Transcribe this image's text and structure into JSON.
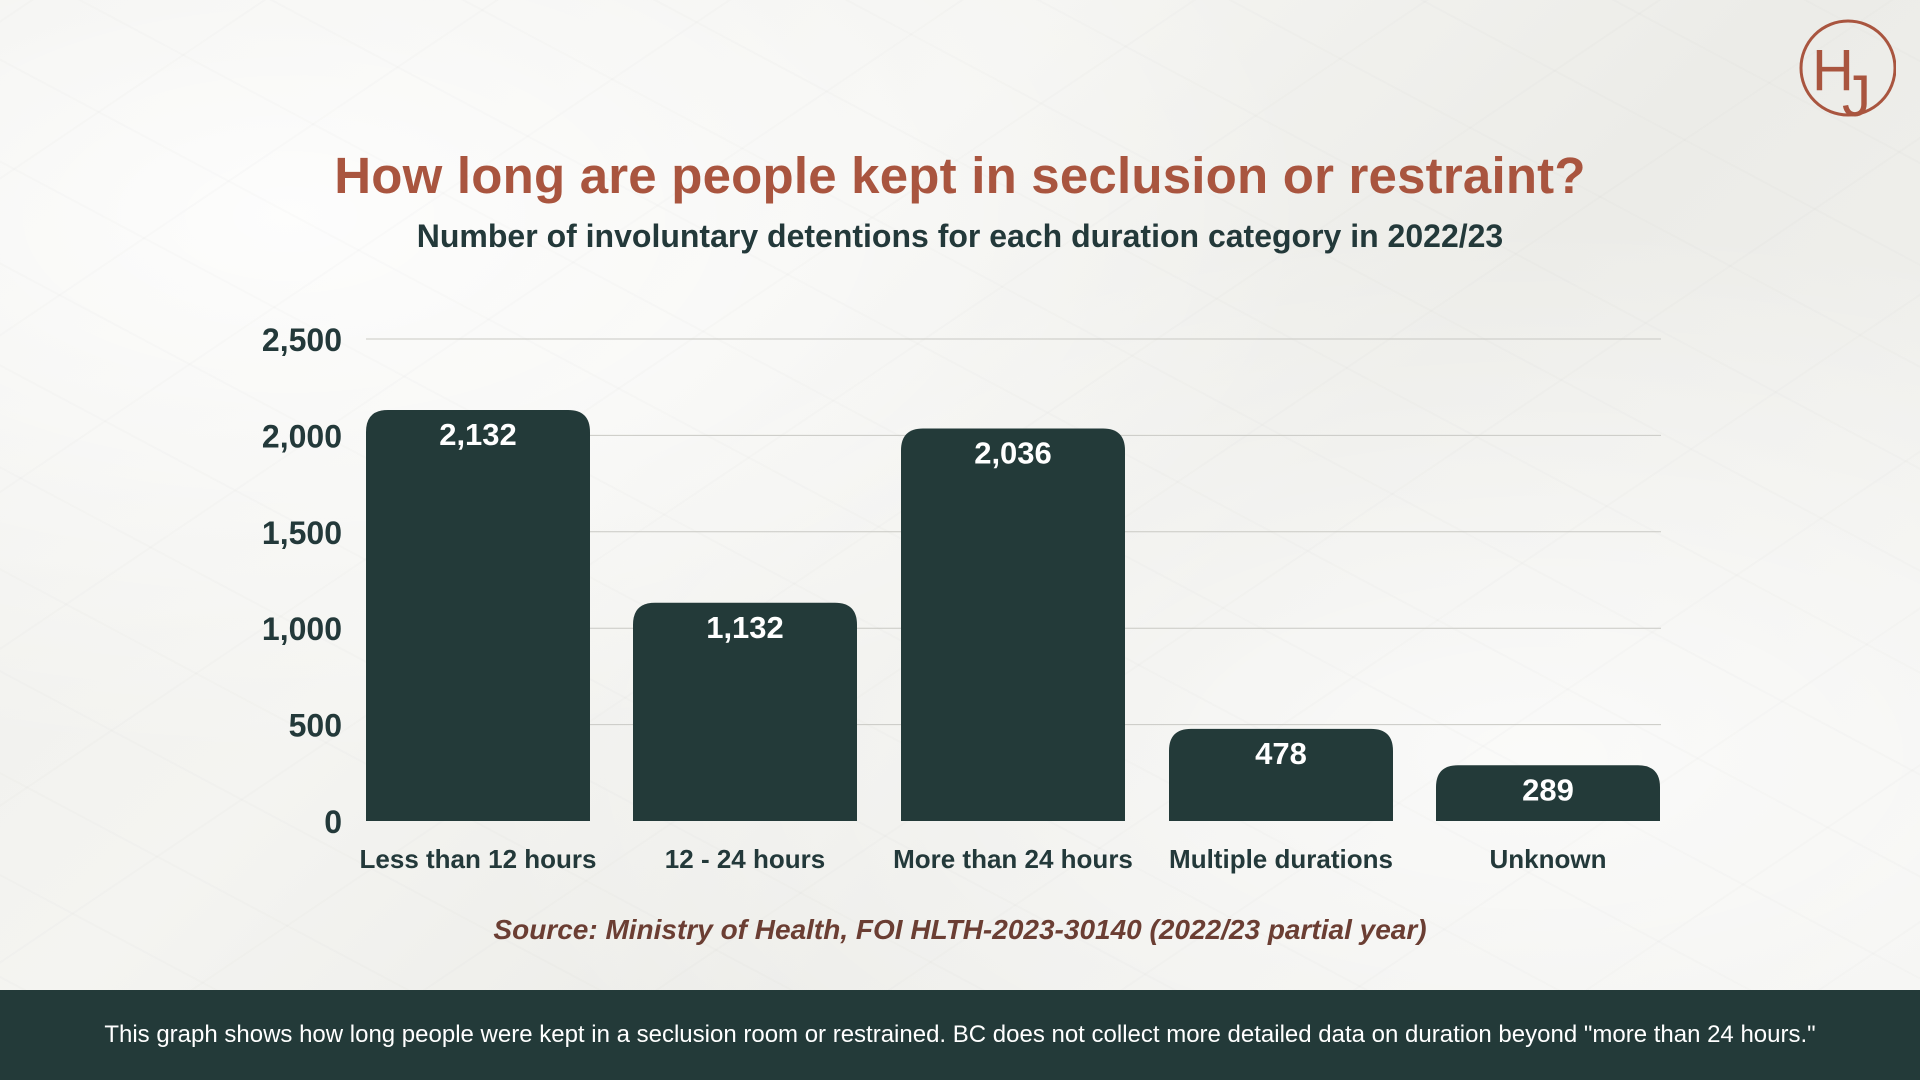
{
  "header": {
    "logo_text": "HJ",
    "brand_color": "#a9553f",
    "title": "How long are people kept in seclusion or restraint?",
    "subtitle": "Number of involuntary detentions for each duration category in 2022/23"
  },
  "chart_data": {
    "type": "bar",
    "title": "How long are people kept in seclusion or restraint?",
    "subtitle": "Number of involuntary detentions for each duration category in 2022/23",
    "categories": [
      "Less than 12 hours",
      "12 - 24 hours",
      "More than 24 hours",
      "Multiple durations",
      "Unknown"
    ],
    "values": [
      2132,
      1132,
      2036,
      478,
      289
    ],
    "value_labels": [
      "2,132",
      "1,132",
      "2,036",
      "478",
      "289"
    ],
    "yticks": [
      0,
      500,
      1000,
      1500,
      2000,
      2500
    ],
    "ytick_labels": [
      "0",
      "500",
      "1,000",
      "1,500",
      "2,000",
      "2,500"
    ],
    "ylim": [
      0,
      2500
    ],
    "xlabel": "",
    "ylabel": "",
    "grid": true,
    "bar_color": "#233a39",
    "value_label_color": "#ffffff"
  },
  "source": "Source: Ministry of Health, FOI HLTH-2023-30140 (2022/23 partial year)",
  "footer": {
    "text": "This graph shows how long people were kept in a seclusion room or restrained. BC does not collect more detailed data on duration beyond \"more than 24 hours.\"",
    "background": "#233a39"
  }
}
